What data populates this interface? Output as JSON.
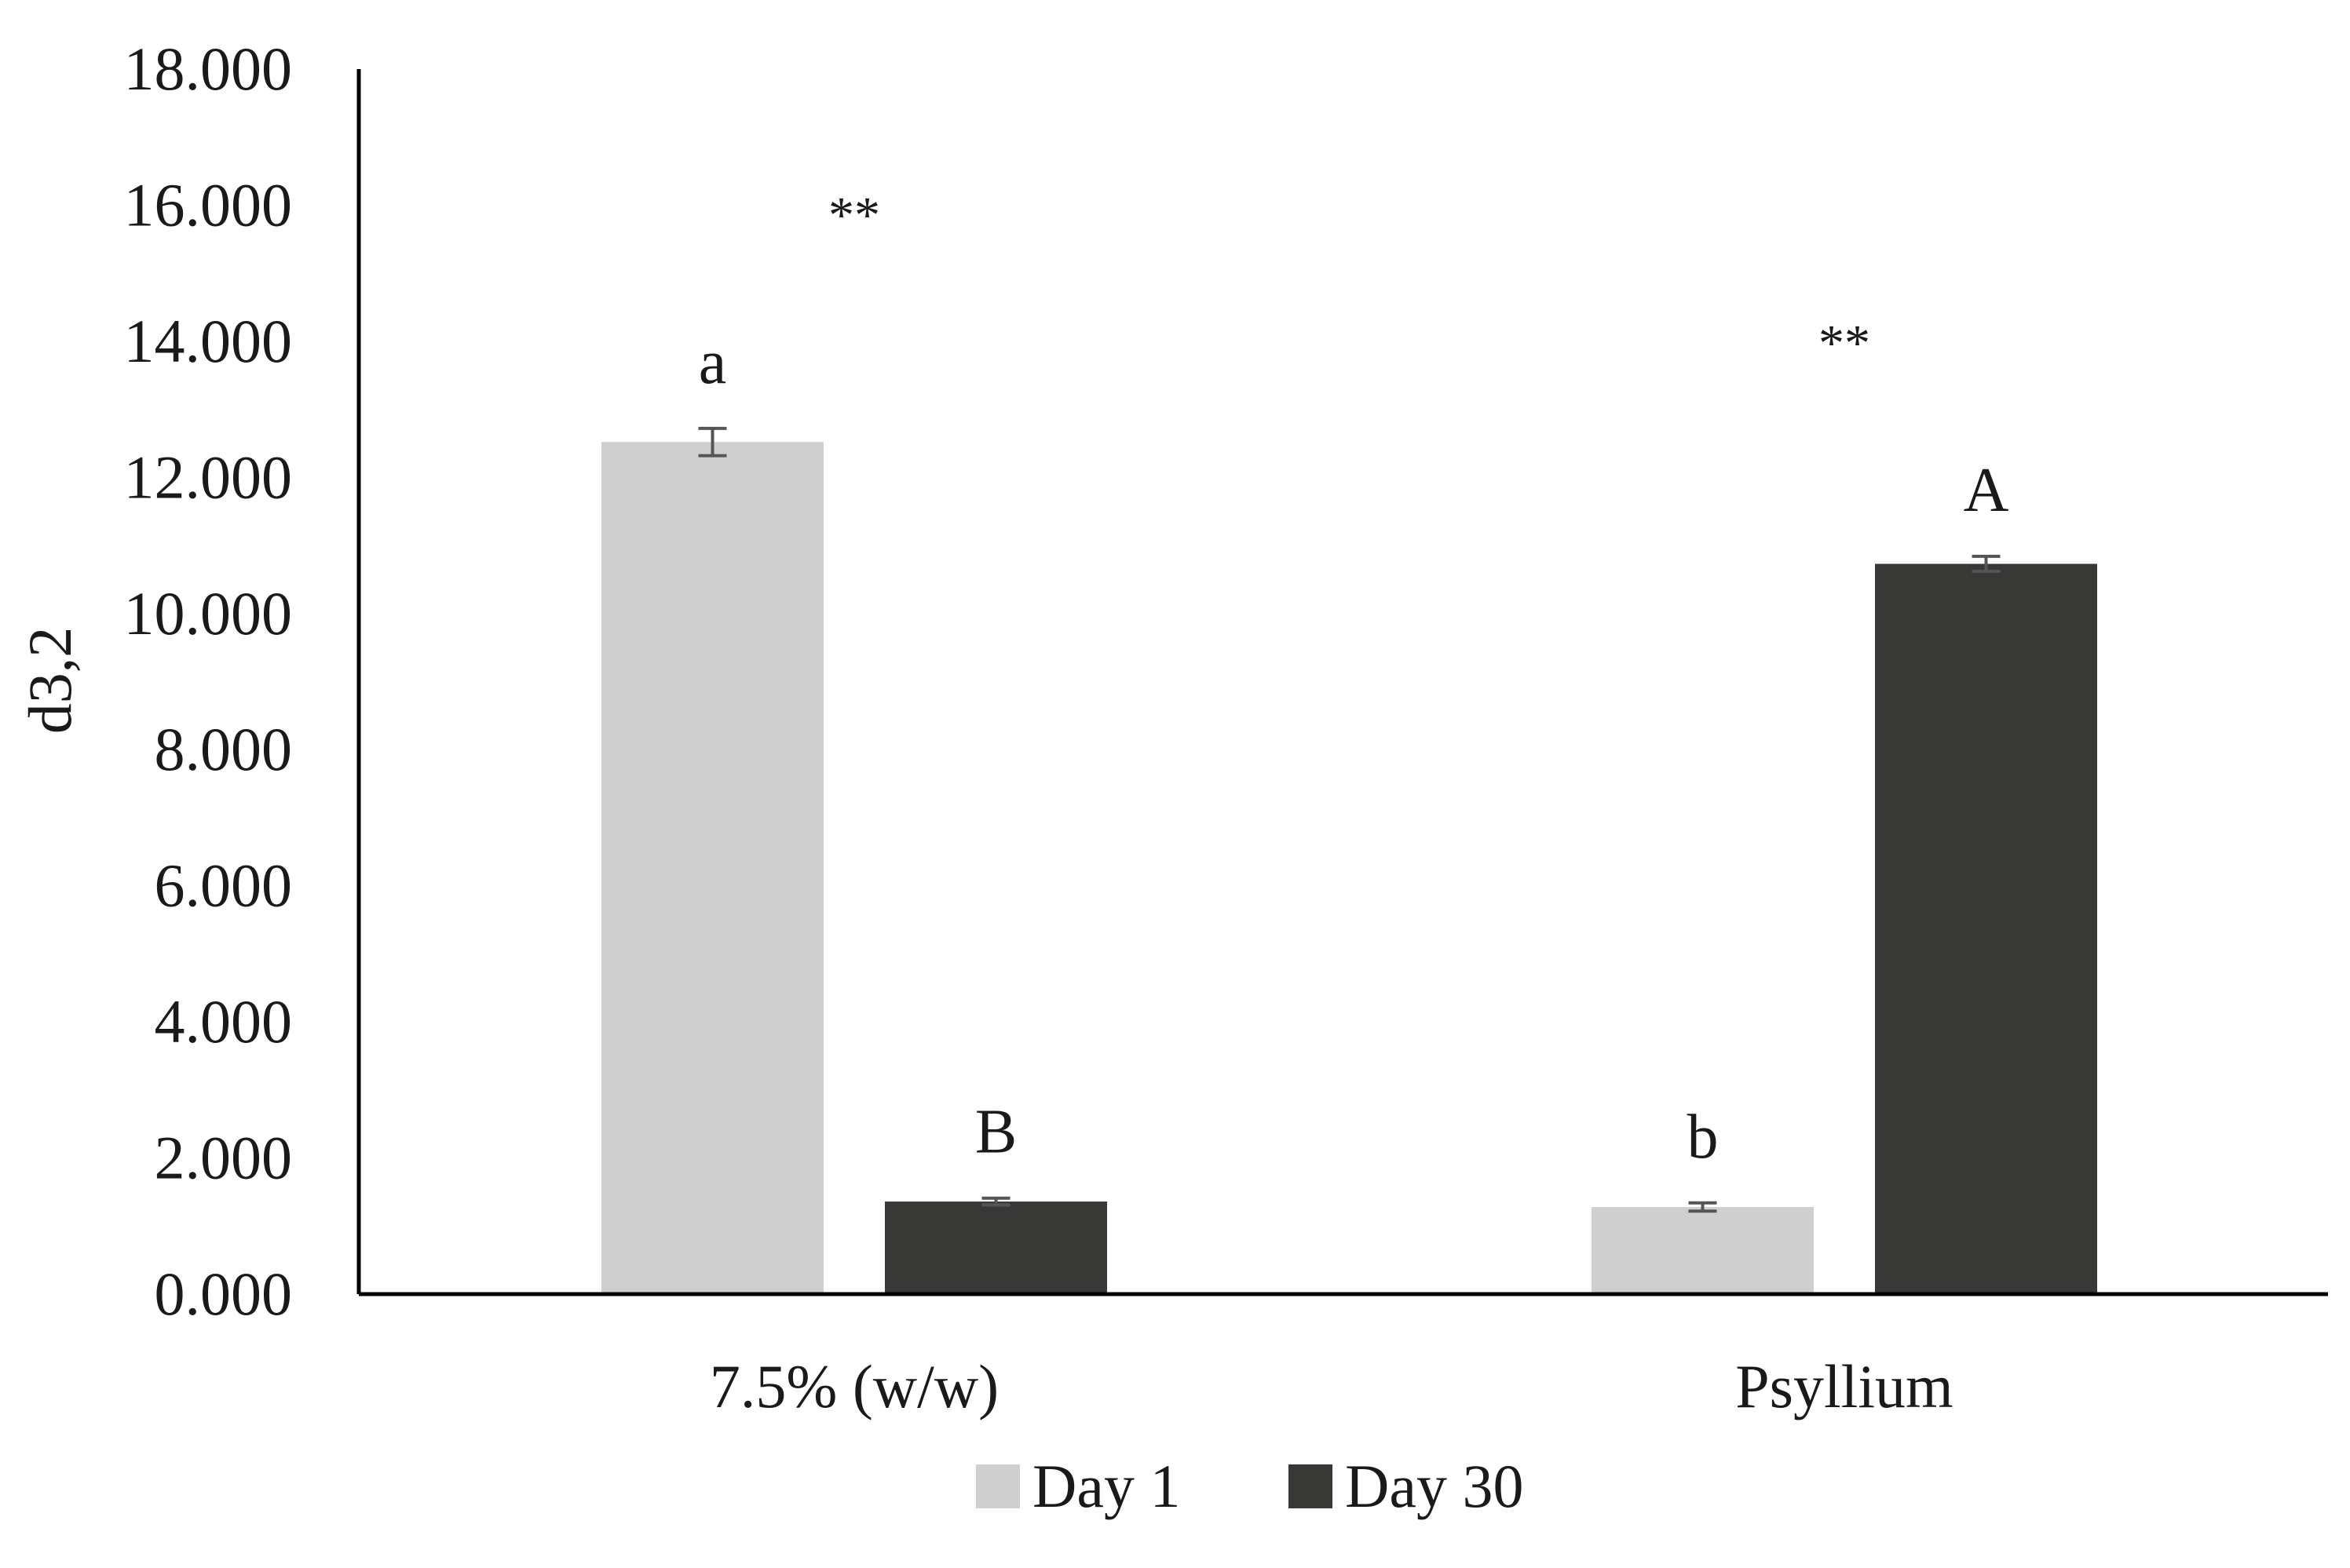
{
  "chart_data": {
    "type": "bar",
    "categories": [
      "7.5% (w/w)",
      "Psyllium"
    ],
    "series": [
      {
        "name": "Day 1",
        "color": "#d0cfcf",
        "values": [
          12.52,
          1.28
        ],
        "errors": [
          0.2,
          0.06
        ],
        "letters": [
          "a",
          "b"
        ]
      },
      {
        "name": "Day 30",
        "color": "#383837",
        "values": [
          1.36,
          10.73
        ],
        "errors": [
          0.05,
          0.11
        ],
        "letters": [
          "B",
          "A"
        ]
      }
    ],
    "significance": [
      "**",
      "**"
    ],
    "title": "",
    "xlabel": "",
    "ylabel": "d3,2",
    "ylim": [
      0,
      18
    ],
    "yticks": [
      "0.000",
      "2.000",
      "4.000",
      "6.000",
      "8.000",
      "10.000",
      "12.000",
      "14.000",
      "16.000",
      "18.000"
    ],
    "grid": false,
    "legend_position": "bottom"
  }
}
